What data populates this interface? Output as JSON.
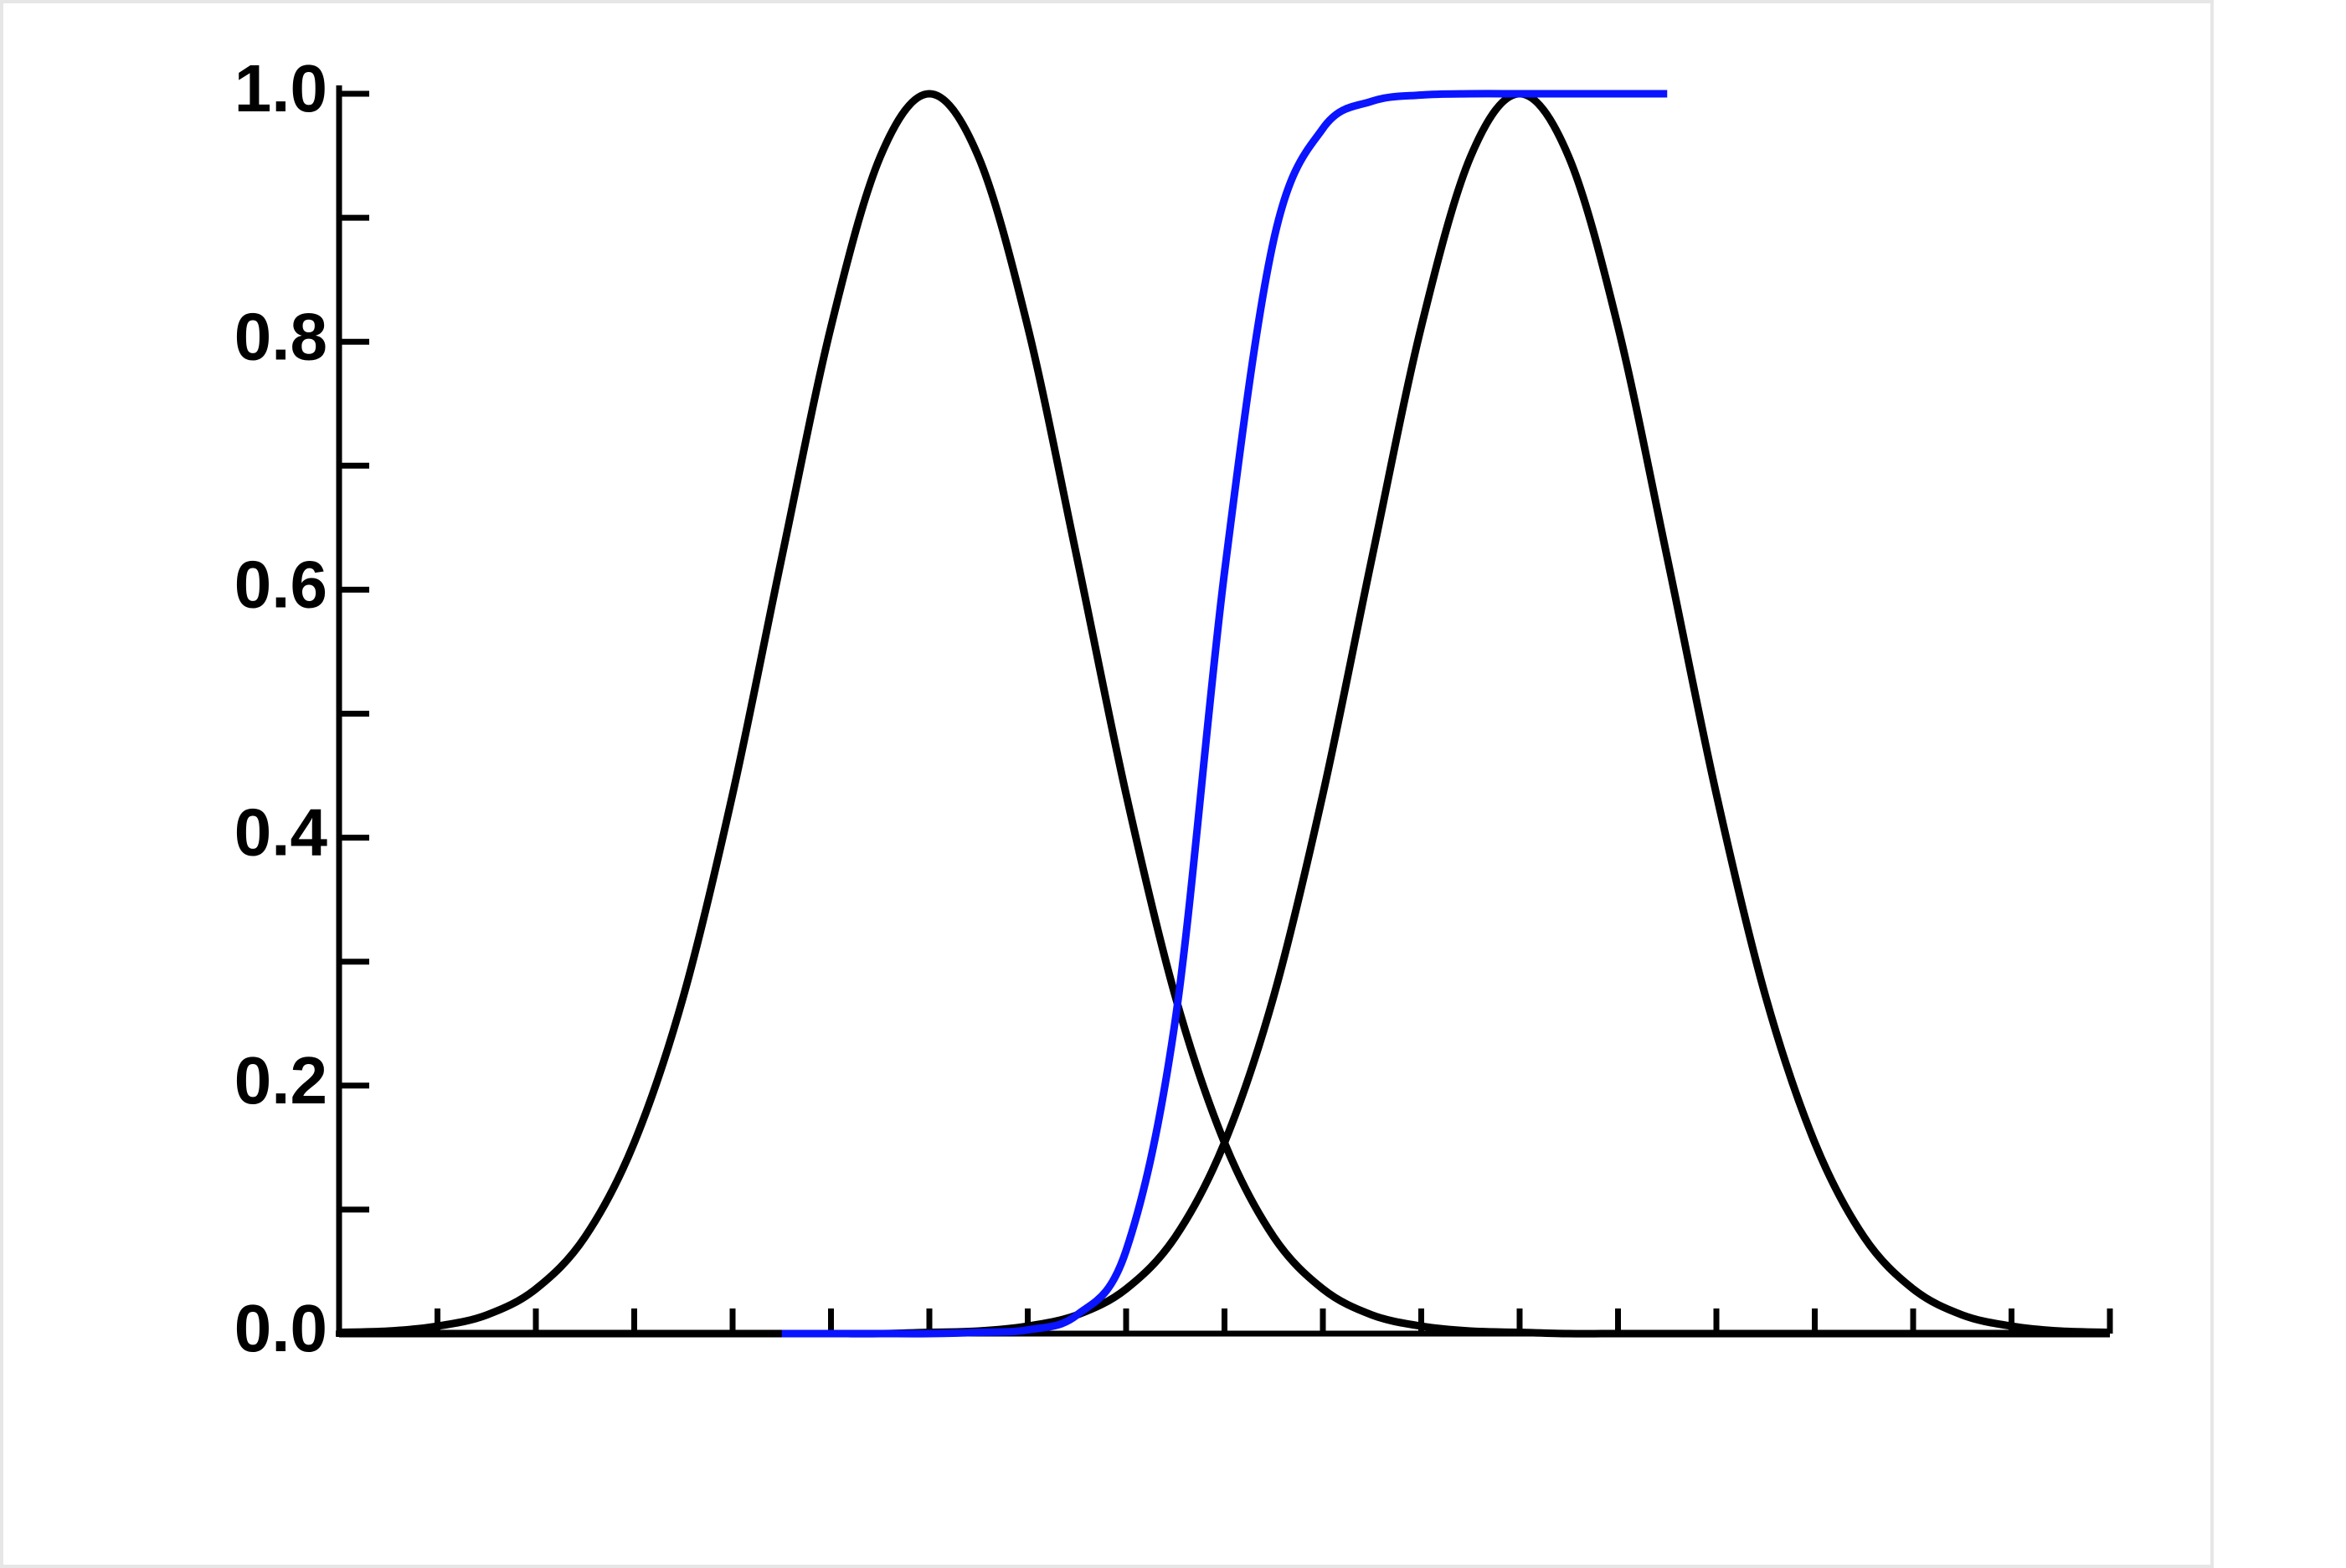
{
  "chart_data": {
    "type": "line",
    "x": [
      0,
      0.5,
      1,
      1.5,
      2,
      2.5,
      3,
      3.5,
      4,
      4.5,
      5,
      5.5,
      6,
      6.5,
      7,
      7.5,
      8,
      8.5,
      9,
      9.5,
      10,
      10.5,
      11,
      11.5,
      12,
      12.5,
      13,
      13.5,
      14,
      14.5,
      15,
      15.5,
      16,
      16.5,
      17,
      17.5,
      18
    ],
    "series": [
      {
        "color": "#000000",
        "values": [
          0.001,
          0.002,
          0.006,
          0.015,
          0.036,
          0.078,
          0.154,
          0.272,
          0.435,
          0.626,
          0.812,
          0.949,
          1,
          0.949,
          0.812,
          0.626,
          0.435,
          0.272,
          0.154,
          0.078,
          0.036,
          0.015,
          0.006,
          0.002,
          0.001,
          0,
          0,
          0,
          0,
          0,
          0,
          0,
          0,
          0,
          0,
          0,
          0
        ]
      },
      {
        "color": "#000000",
        "values": [
          0,
          0,
          0,
          0,
          0,
          0,
          0,
          0,
          0,
          0,
          0,
          0,
          0.001,
          0.002,
          0.006,
          0.015,
          0.036,
          0.078,
          0.154,
          0.272,
          0.435,
          0.626,
          0.812,
          0.949,
          1,
          0.949,
          0.812,
          0.626,
          0.435,
          0.272,
          0.154,
          0.078,
          0.036,
          0.015,
          0.006,
          0.002,
          0.001
        ]
      },
      {
        "color": "#0a14ff",
        "values": [
          null,
          null,
          null,
          null,
          null,
          null,
          null,
          null,
          null,
          0,
          0,
          0,
          0,
          0.001,
          0.003,
          0.015,
          0.067,
          0.253,
          0.614,
          0.882,
          0.972,
          0.994,
          0.999,
          1,
          1,
          1,
          1,
          1,
          null,
          null,
          null,
          null,
          null,
          null,
          null,
          null,
          null
        ]
      }
    ],
    "xlim": [
      0,
      18
    ],
    "xticks": [
      0,
      1,
      2,
      3,
      4,
      5,
      6,
      7,
      8,
      9,
      10,
      11,
      12,
      13,
      14,
      15,
      16,
      17,
      18
    ],
    "ylim": [
      0,
      1
    ],
    "yticks": [
      {
        "value": 0,
        "label": "0.0"
      },
      {
        "value": 0.2,
        "label": "0.2"
      },
      {
        "value": 0.4,
        "label": "0.4"
      },
      {
        "value": 0.6,
        "label": "0.6"
      },
      {
        "value": 0.8,
        "label": "0.8"
      },
      {
        "value": 1,
        "label": "1.0"
      }
    ],
    "yminorticks": [
      0.1,
      0.3,
      0.5,
      0.7,
      0.9
    ]
  }
}
